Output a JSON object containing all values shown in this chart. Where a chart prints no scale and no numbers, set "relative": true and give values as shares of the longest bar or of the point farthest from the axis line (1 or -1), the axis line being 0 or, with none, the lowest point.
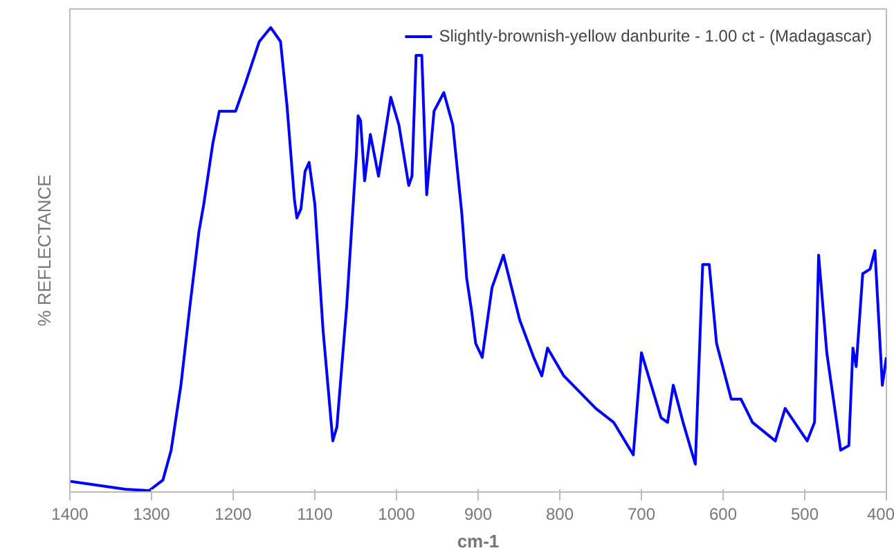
{
  "chart_data": {
    "type": "line",
    "relative": true,
    "xlabel": "cm-1",
    "ylabel": "% REFLECTANCE",
    "xlim": [
      1400,
      400
    ],
    "xticks": [
      1400,
      1300,
      1200,
      1100,
      1000,
      900,
      800,
      700,
      600,
      500,
      400
    ],
    "legend": "top right",
    "grid": false,
    "marker": "none",
    "line_style": "solid",
    "series": [
      {
        "name": "Slightly-brownish-yellow danburite - 1.00 ct - (Madagascar)",
        "color": "#0000ff",
        "x": [
          1400,
          1332,
          1303,
          1286,
          1276,
          1264,
          1253,
          1242,
          1236,
          1225,
          1217,
          1197,
          1185,
          1168,
          1154,
          1142,
          1134,
          1125,
          1122,
          1117,
          1112,
          1107,
          1100,
          1090,
          1078,
          1073,
          1061,
          1049,
          1047,
          1044,
          1039,
          1032,
          1022,
          1007,
          997,
          985,
          981,
          976,
          969,
          963,
          954,
          942,
          931,
          920,
          914,
          908,
          903,
          895,
          883,
          869,
          849,
          832,
          822,
          815,
          795,
          756,
          734,
          710,
          700,
          676,
          668,
          661,
          649,
          634,
          625,
          617,
          608,
          590,
          578,
          564,
          536,
          524,
          497,
          488,
          483,
          473,
          456,
          446,
          441,
          437,
          429,
          420,
          414,
          405,
          400
        ],
        "values": [
          0.023,
          0.006,
          0.003,
          0.026,
          0.09,
          0.23,
          0.4,
          0.56,
          0.62,
          0.75,
          0.82,
          0.82,
          0.88,
          0.97,
          1.0,
          0.97,
          0.83,
          0.63,
          0.59,
          0.61,
          0.69,
          0.71,
          0.62,
          0.35,
          0.11,
          0.14,
          0.4,
          0.73,
          0.81,
          0.8,
          0.67,
          0.77,
          0.68,
          0.85,
          0.79,
          0.66,
          0.68,
          0.94,
          0.94,
          0.64,
          0.82,
          0.86,
          0.79,
          0.6,
          0.46,
          0.39,
          0.32,
          0.29,
          0.44,
          0.51,
          0.37,
          0.29,
          0.25,
          0.31,
          0.25,
          0.18,
          0.15,
          0.08,
          0.3,
          0.16,
          0.15,
          0.23,
          0.15,
          0.06,
          0.49,
          0.49,
          0.32,
          0.2,
          0.2,
          0.15,
          0.11,
          0.18,
          0.11,
          0.15,
          0.51,
          0.3,
          0.09,
          0.1,
          0.31,
          0.27,
          0.47,
          0.48,
          0.52,
          0.23,
          0.29
        ]
      }
    ]
  }
}
